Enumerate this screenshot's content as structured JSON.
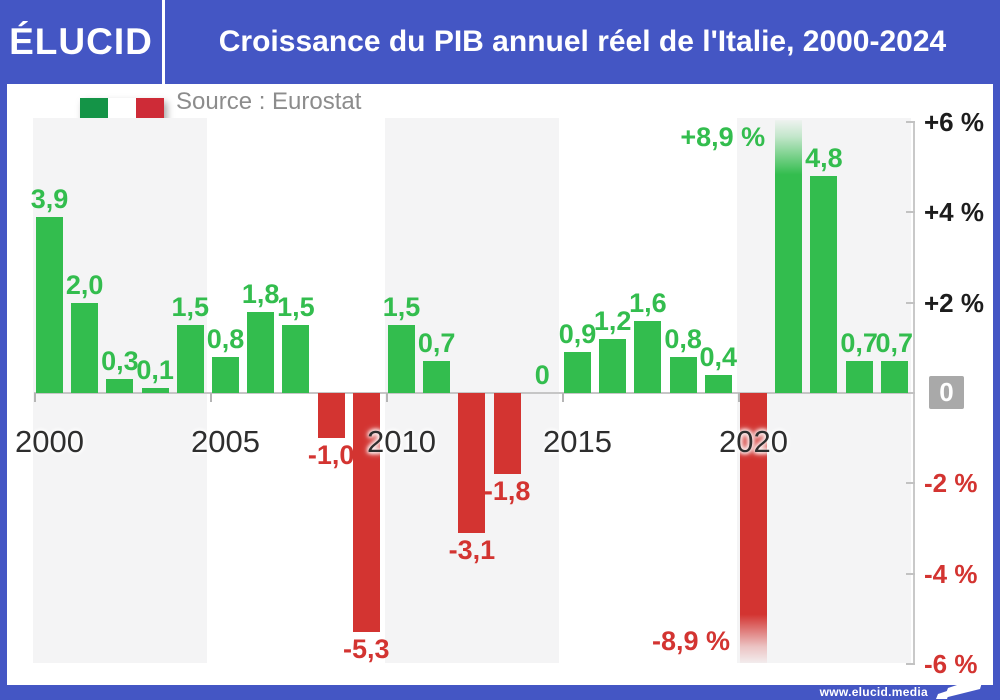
{
  "header": {
    "brand": "ÉLUCID",
    "title": "Croissance du PIB annuel réel de l'Italie, 2000-2024"
  },
  "source_label": "Source : Eurostat",
  "footer": {
    "url": "www.elucid.media"
  },
  "colors": {
    "brand_blue": "#4456c4",
    "positive_green": "#33bd4e",
    "negative_red": "#d33431",
    "stripe_gray": "#f4f4f5",
    "flag_green": "#149447",
    "flag_white": "#ffffff",
    "flag_red": "#ce2b37",
    "zero_box_gray": "#a9a9a9"
  },
  "chart_data": {
    "type": "bar",
    "title": "Croissance du PIB annuel réel de l'Italie, 2000-2024",
    "source": "Eurostat",
    "unit": "%",
    "x": [
      2000,
      2001,
      2002,
      2003,
      2004,
      2005,
      2006,
      2007,
      2008,
      2009,
      2010,
      2011,
      2012,
      2013,
      2014,
      2015,
      2016,
      2017,
      2018,
      2019,
      2020,
      2021,
      2022,
      2023,
      2024
    ],
    "values": [
      3.9,
      2.0,
      0.3,
      0.1,
      1.5,
      0.8,
      1.8,
      1.5,
      -1.0,
      -5.3,
      1.5,
      0.7,
      -3.1,
      -1.8,
      0,
      0.9,
      1.2,
      1.6,
      0.8,
      0.4,
      -8.9,
      8.9,
      4.8,
      0.7,
      0.7
    ],
    "labels": [
      "3,9",
      "2,0",
      "0,3",
      "0,1",
      "1,5",
      "0,8",
      "1,8",
      "1,5",
      "-1,0",
      "-5,3",
      "1,5",
      "0,7",
      "-3,1",
      "-1,8",
      "0",
      "0,9",
      "1,2",
      "1,6",
      "0,8",
      "0,4",
      "-8,9 %",
      "+8,9 %",
      "4,8",
      "0,7",
      "0,7"
    ],
    "positive_color": "#33bd4e",
    "negative_color": "#d33431",
    "ylim": [
      -6,
      6
    ],
    "y_ticks": [
      {
        "label": "+6 %",
        "value": 6
      },
      {
        "label": "+4 %",
        "value": 4
      },
      {
        "label": "+2 %",
        "value": 2
      },
      {
        "label": "0",
        "value": 0
      },
      {
        "label": "-2 %",
        "value": -2
      },
      {
        "label": "-4 %",
        "value": -4
      },
      {
        "label": "-6 %",
        "value": -6
      }
    ],
    "x_ticks": [
      2000,
      2005,
      2010,
      2015,
      2020
    ],
    "band_groups": [
      [
        2000,
        2004
      ],
      [
        2010,
        2014
      ],
      [
        2020,
        2024
      ]
    ],
    "grid": false,
    "legend": "none"
  }
}
